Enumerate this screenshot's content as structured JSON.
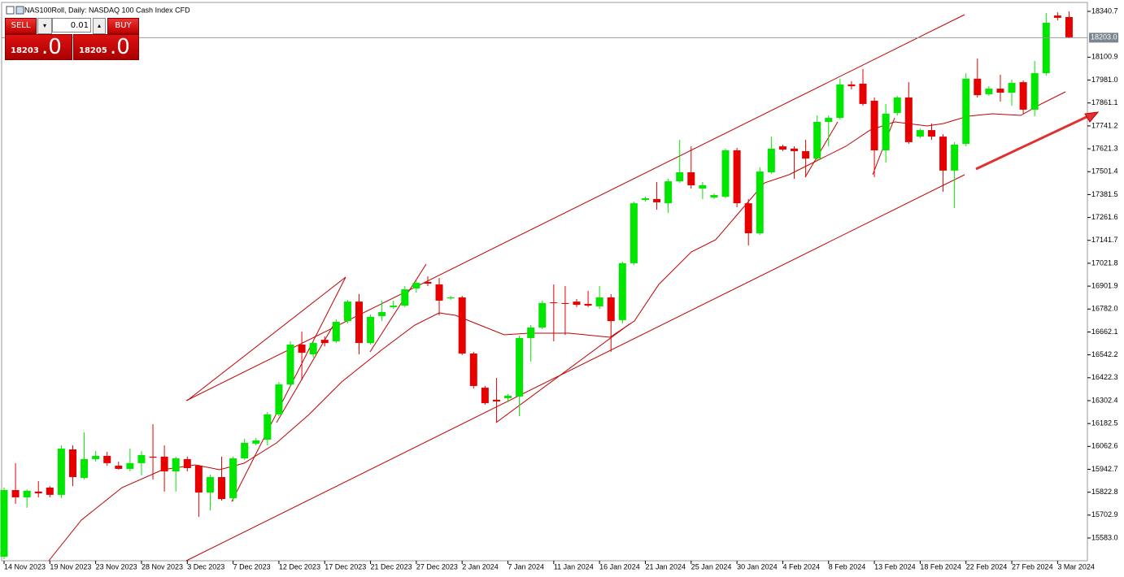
{
  "chart_data": {
    "type": "candlestick",
    "title": "NAS100Roll, Daily:  NASDAQ 100 Cash Index CFD",
    "categories": [
      "14 Nov 2023",
      null,
      null,
      null,
      "19 Nov 2023",
      null,
      null,
      null,
      "23 Nov 2023",
      null,
      null,
      null,
      "28 Nov 2023",
      null,
      null,
      null,
      "3 Dec 2023",
      null,
      null,
      null,
      "7 Dec 2023",
      null,
      null,
      null,
      "12 Dec 2023",
      null,
      null,
      null,
      "17 Dec 2023",
      null,
      null,
      null,
      "21 Dec 2023",
      null,
      null,
      null,
      "27 Dec 2023",
      null,
      null,
      null,
      "2 Jan 2024",
      null,
      null,
      null,
      "7 Jan 2024",
      null,
      null,
      null,
      "11 Jan 2024",
      null,
      null,
      null,
      "16 Jan 2024",
      null,
      null,
      null,
      "21 Jan 2024",
      null,
      null,
      null,
      "25 Jan 2024",
      null,
      null,
      null,
      "30 Jan 2024",
      null,
      null,
      null,
      "4 Feb 2024",
      null,
      null,
      null,
      "8 Feb 2024",
      null,
      null,
      null,
      "13 Feb 2024",
      null,
      null,
      null,
      "18 Feb 2024",
      null,
      null,
      null,
      "22 Feb 2024",
      null,
      null,
      null,
      "27 Feb 2024",
      null,
      null,
      null,
      "3 Mar 2024",
      null
    ],
    "open": [
      15485,
      15834,
      15796,
      15826,
      15847,
      15809,
      16047,
      15898,
      15996,
      16013,
      15962,
      15945,
      15975,
      16009,
      16009,
      15932,
      15996,
      15962,
      15821,
      15902,
      15792,
      16000,
      16077,
      16098,
      16230,
      16387,
      16596,
      16545,
      16621,
      16613,
      16719,
      16821,
      16604,
      16745,
      16792,
      16800,
      16890,
      16924,
      16911,
      16838,
      16843,
      16549,
      16370,
      16307,
      16315,
      16324,
      16630,
      16685,
      16817,
      16813,
      16821,
      16809,
      16796,
      16843,
      16724,
      17022,
      17353,
      17358,
      17336,
      17451,
      17498,
      17413,
      17366,
      17370,
      17613,
      17336,
      17179,
      17498,
      17634,
      17622,
      17609,
      17570,
      17762,
      17783,
      17958,
      17962,
      17873,
      17613,
      17809,
      17890,
      17685,
      17719,
      17685,
      17507,
      17647,
      17988,
      17907,
      17936,
      17915,
      17970,
      17826,
      18017,
      18319,
      18311
    ],
    "high": [
      15847,
      15975,
      15838,
      15881,
      15855,
      16068,
      16068,
      16136,
      16038,
      16034,
      15983,
      16051,
      16038,
      16179,
      16068,
      16009,
      16009,
      15966,
      15915,
      16009,
      16009,
      16102,
      16107,
      16243,
      16400,
      16613,
      16664,
      16613,
      16638,
      16728,
      16830,
      16860,
      16753,
      16826,
      16826,
      16902,
      16932,
      16953,
      16945,
      16851,
      16851,
      16558,
      16379,
      16421,
      16336,
      16643,
      16698,
      16826,
      16911,
      16902,
      16834,
      16877,
      16902,
      16860,
      17030,
      17345,
      17370,
      17447,
      17464,
      17668,
      17634,
      17447,
      17387,
      17622,
      17626,
      17358,
      17524,
      17685,
      17643,
      17634,
      17668,
      17796,
      17796,
      17988,
      17975,
      18039,
      17890,
      17856,
      17898,
      17970,
      17728,
      17753,
      17698,
      17656,
      18017,
      18094,
      17949,
      18009,
      17983,
      17979,
      18081,
      18332,
      18336,
      18341
    ],
    "low": [
      15472,
      15762,
      15741,
      15796,
      15796,
      15792,
      15855,
      15889,
      15983,
      15962,
      15941,
      15932,
      15911,
      15889,
      15826,
      15826,
      15932,
      15694,
      15728,
      15779,
      15775,
      15992,
      16068,
      16068,
      16221,
      16379,
      16409,
      16528,
      16587,
      16604,
      16707,
      16545,
      16596,
      16719,
      16783,
      16792,
      16868,
      16902,
      16749,
      16830,
      16541,
      16366,
      16281,
      16187,
      16294,
      16221,
      16507,
      16677,
      16613,
      16647,
      16792,
      16792,
      16783,
      16558,
      16707,
      17013,
      17345,
      17302,
      17285,
      17443,
      17413,
      17358,
      17358,
      17362,
      17315,
      17115,
      17170,
      17490,
      17609,
      17464,
      17473,
      17562,
      17634,
      17775,
      17932,
      17847,
      17473,
      17549,
      17796,
      17647,
      17677,
      17668,
      17396,
      17311,
      17634,
      17890,
      17898,
      17868,
      17847,
      17805,
      17792,
      18005,
      18294,
      18200
    ],
    "close": [
      15834,
      15796,
      15830,
      15817,
      15809,
      16051,
      15902,
      15996,
      16013,
      15975,
      15945,
      15975,
      16017,
      16004,
      15932,
      16000,
      15949,
      15821,
      15902,
      15787,
      16000,
      16081,
      16094,
      16230,
      16387,
      16596,
      16553,
      16604,
      16604,
      16715,
      16821,
      16604,
      16741,
      16766,
      16800,
      16885,
      16919,
      16915,
      16826,
      16843,
      16549,
      16379,
      16289,
      16298,
      16328,
      16630,
      16685,
      16813,
      16813,
      16809,
      16804,
      16800,
      16843,
      16719,
      17022,
      17336,
      17362,
      17341,
      17451,
      17498,
      17430,
      17430,
      17379,
      17613,
      17336,
      17179,
      17502,
      17622,
      17617,
      17609,
      17570,
      17762,
      17783,
      17958,
      17949,
      17856,
      17613,
      17805,
      17890,
      17656,
      17719,
      17685,
      17507,
      17643,
      17988,
      17902,
      17936,
      17915,
      17966,
      17826,
      18017,
      18281,
      18307,
      18205
    ],
    "up_color": "#00e600",
    "down_color": "#e60000",
    "ylim": [
      15472.4,
      18383.3
    ],
    "yticks": [
      18340.7,
      18100.9,
      {
        "value": 17981,
        "label": "17981.0"
      },
      17861.1,
      17741.2,
      17621.3,
      17501.4,
      17381.5,
      17261.6,
      17141.7,
      17021.8,
      16901.9,
      {
        "value": 16782,
        "label": "16782.0"
      },
      16662.1,
      16542.2,
      16422.3,
      16302.4,
      16182.5,
      16062.6,
      15942.7,
      15822.8,
      15702.9,
      {
        "value": 15583,
        "label": "15583.0"
      }
    ],
    "current_price": {
      "value": 18203,
      "label": "18203.0"
    },
    "grid": false
  },
  "trade_panel": {
    "sell": "SELL",
    "buy": "BUY",
    "lot": "0.01",
    "bid": {
      "main": "18203",
      "fraction": ".0"
    },
    "ask": {
      "main": "18205",
      "fraction": ".0"
    }
  }
}
